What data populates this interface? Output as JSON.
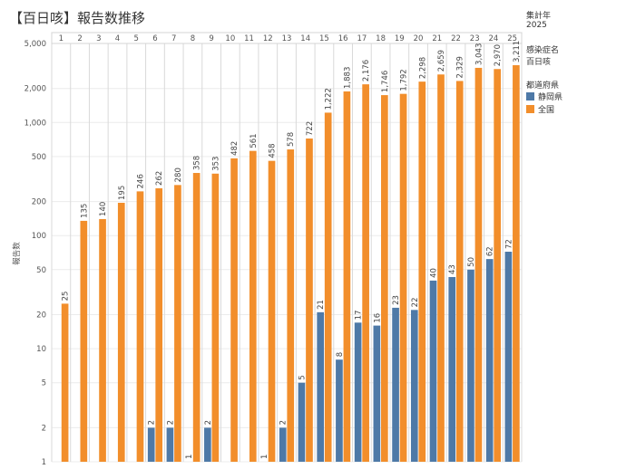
{
  "title": "【百日咳】報告数推移",
  "side_panel": {
    "year_label": "集計年",
    "year_value": "2025",
    "disease_label": "感染症名",
    "disease_value": "百日咳",
    "region_label": "都道府県"
  },
  "colors": {
    "shizuoka": "#4e79a7",
    "national": "#f28e2b"
  },
  "chart_data": {
    "type": "bar",
    "categories": [
      "1",
      "2",
      "3",
      "4",
      "5",
      "6",
      "7",
      "8",
      "9",
      "10",
      "11",
      "12",
      "13",
      "14",
      "15",
      "16",
      "17",
      "18",
      "19",
      "20",
      "21",
      "22",
      "23",
      "24",
      "25"
    ],
    "series": [
      {
        "name": "静岡県",
        "color": "#4e79a7",
        "values": [
          null,
          null,
          null,
          null,
          null,
          2,
          2,
          1,
          2,
          null,
          null,
          1,
          2,
          5,
          21,
          8,
          17,
          16,
          23,
          22,
          40,
          43,
          50,
          62,
          72
        ]
      },
      {
        "name": "全国",
        "color": "#f28e2b",
        "values": [
          25,
          135,
          140,
          195,
          246,
          262,
          280,
          358,
          353,
          482,
          561,
          458,
          578,
          722,
          1222,
          1883,
          2176,
          1746,
          1792,
          2298,
          2659,
          2329,
          3043,
          2970,
          3211
        ]
      }
    ],
    "value_labels": {
      "静岡県": [
        "",
        "",
        "",
        "",
        "",
        "2",
        "2",
        "1",
        "2",
        "",
        "",
        "1",
        "2",
        "5",
        "21",
        "8",
        "17",
        "16",
        "23",
        "22",
        "40",
        "43",
        "50",
        "62",
        "72"
      ],
      "全国": [
        "25",
        "135",
        "140",
        "195",
        "246",
        "262",
        "280",
        "358",
        "353",
        "482",
        "561",
        "458",
        "578",
        "722",
        "1,222",
        "1,883",
        "2,176",
        "1,746",
        "1,792",
        "2,298",
        "2,659",
        "2,329",
        "3,043",
        "2,970",
        "3,211"
      ]
    },
    "ylabel": "報告数",
    "yscale": "log",
    "ylim": [
      1,
      5000
    ],
    "yticks": [
      1,
      2,
      5,
      10,
      20,
      50,
      100,
      200,
      500,
      1000,
      2000,
      5000
    ],
    "ytick_labels": [
      "1",
      "2",
      "5",
      "10",
      "20",
      "50",
      "100",
      "200",
      "500",
      "1,000",
      "2,000",
      "5,000"
    ],
    "legend_position": "right"
  }
}
